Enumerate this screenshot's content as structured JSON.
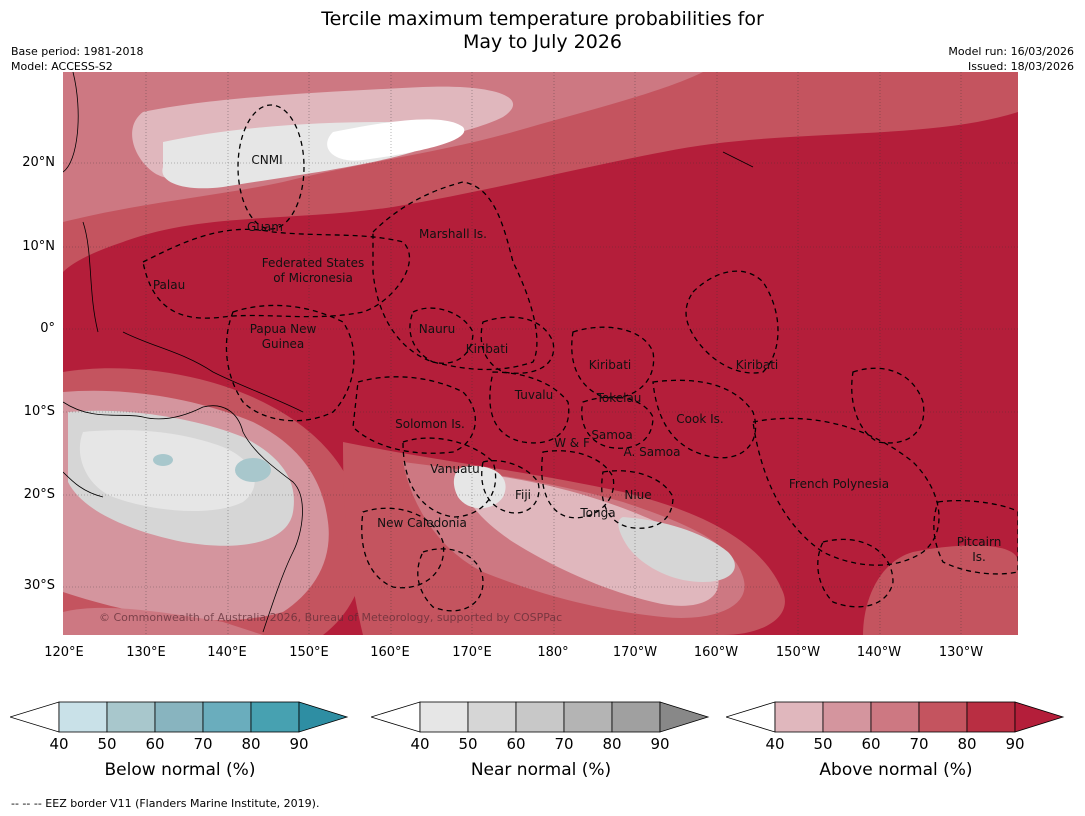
{
  "title_line1": "Tercile maximum temperature probabilities for",
  "title_line2": "May to July 2026",
  "meta_left": [
    "Base period: 1981-2018",
    "Model: ACCESS-S2"
  ],
  "meta_right": [
    "Model run: 16/03/2026",
    "Issued: 18/03/2026"
  ],
  "lat_labels": [
    "20°N",
    "10°N",
    "0°",
    "10°S",
    "20°S",
    "30°S"
  ],
  "lon_labels": [
    "120°E",
    "130°E",
    "140°E",
    "150°E",
    "160°E",
    "170°E",
    "180°",
    "170°W",
    "160°W",
    "150°W",
    "140°W",
    "130°W"
  ],
  "map_labels": [
    "CNMI",
    "Guam",
    "Marshall Is.",
    "Federated States",
    "of Micronesia",
    "Palau",
    "Papua New",
    "Guinea",
    "Nauru",
    "Kiribati",
    "Kiribati",
    "Kiribati",
    "Tuvalu",
    "Tokelau",
    "Solomon Is.",
    "Samoa",
    "W & F",
    "A. Samoa",
    "Cook Is.",
    "Vanuatu",
    "Fiji",
    "Niue",
    "French Polynesia",
    "Tonga",
    "New Caledonia",
    "Pitcairn",
    "Is."
  ],
  "copyright": "© Commonwealth of Australia 2026, Bureau of Meteorology, supported by COSPPac",
  "colorbars": [
    {
      "name": "Below normal (%)",
      "ticks": [
        "40",
        "50",
        "60",
        "70",
        "80",
        "90"
      ],
      "colors": [
        "#ffffff",
        "#c9e1e8",
        "#a8c7cc",
        "#88b4bf",
        "#6aadbd",
        "#47a1b1",
        "#2e8ea3"
      ]
    },
    {
      "name": "Near normal (%)",
      "ticks": [
        "40",
        "50",
        "60",
        "70",
        "80",
        "90"
      ],
      "colors": [
        "#ffffff",
        "#e6e6e6",
        "#d6d6d6",
        "#c8c8c8",
        "#b4b4b4",
        "#a0a0a0",
        "#888888"
      ]
    },
    {
      "name": "Above normal (%)",
      "ticks": [
        "40",
        "50",
        "60",
        "70",
        "80",
        "90"
      ],
      "colors": [
        "#ffffff",
        "#e0b7bd",
        "#d4959e",
        "#cd7882",
        "#c4545f",
        "#b92e42",
        "#b41e3a"
      ]
    }
  ],
  "footnote": "-- -- -- EEZ border V11 (Flanders Marine Institute, 2019)."
}
